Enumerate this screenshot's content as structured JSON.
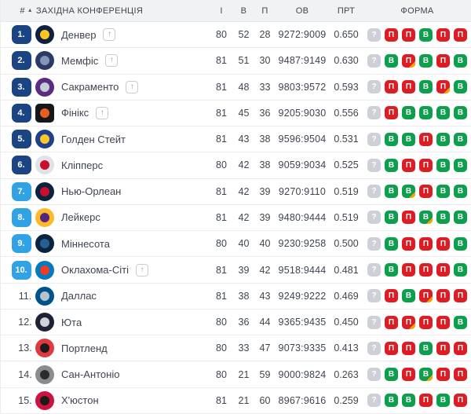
{
  "header": {
    "rank_label": "#",
    "conference_label": "ЗАХІДНА КОНФЕРЕНЦІЯ",
    "columns": [
      "І",
      "В",
      "П",
      "ОВ",
      "ПРТ",
      "ФОРМА"
    ]
  },
  "icons": {
    "sort_asc": "▲",
    "promotion_arrow": "↑"
  },
  "colors": {
    "seed_dark": "#1b4482",
    "seed_light": "#31a2e3",
    "win": "#0ca04c",
    "loss": "#de1c24",
    "unknown": "#cdd1d7",
    "overtime": "#f7a600"
  },
  "rows": [
    {
      "rank": "1.",
      "seed": "dark",
      "team": "Денвер",
      "promoted": true,
      "logo": {
        "shape": "circle",
        "outer": "#0e2240",
        "inner": "#fec524"
      },
      "games": "80",
      "wins": "52",
      "losses": "28",
      "points": "9272:9009",
      "pct": "0.650",
      "form": [
        "?",
        "П",
        "П",
        "В",
        "П",
        "П"
      ]
    },
    {
      "rank": "2.",
      "seed": "dark",
      "team": "Мемфіс",
      "promoted": true,
      "logo": {
        "shape": "circle",
        "outer": "#2b3a66",
        "inner": "#8495b5"
      },
      "games": "81",
      "wins": "51",
      "losses": "30",
      "points": "9487:9149",
      "pct": "0.630",
      "form": [
        "?",
        "В",
        "П*",
        "В",
        "П",
        "В"
      ]
    },
    {
      "rank": "3.",
      "seed": "dark",
      "team": "Сакраменто",
      "promoted": true,
      "logo": {
        "shape": "circle",
        "outer": "#5a2d81",
        "inner": "#c4ced4"
      },
      "games": "81",
      "wins": "48",
      "losses": "33",
      "points": "9803:9572",
      "pct": "0.593",
      "form": [
        "?",
        "П",
        "П",
        "В",
        "П*",
        "В"
      ]
    },
    {
      "rank": "4.",
      "seed": "dark",
      "team": "Фінікс",
      "promoted": true,
      "logo": {
        "shape": "square",
        "outer": "#17161b",
        "inner": "#e56020"
      },
      "games": "81",
      "wins": "45",
      "losses": "36",
      "points": "9205:9030",
      "pct": "0.556",
      "form": [
        "?",
        "П",
        "В",
        "В",
        "В",
        "В"
      ]
    },
    {
      "rank": "5.",
      "seed": "dark",
      "team": "Голден Стейт",
      "promoted": false,
      "logo": {
        "shape": "circle",
        "outer": "#1d428a",
        "inner": "#ffc72c"
      },
      "games": "81",
      "wins": "43",
      "losses": "38",
      "points": "9596:9504",
      "pct": "0.531",
      "form": [
        "?",
        "В",
        "В",
        "П",
        "В",
        "В"
      ]
    },
    {
      "rank": "6.",
      "seed": "dark",
      "team": "Кліпперс",
      "promoted": false,
      "logo": {
        "shape": "circle",
        "outer": "#dfe3e8",
        "inner": "#c8102e"
      },
      "games": "80",
      "wins": "42",
      "losses": "38",
      "points": "9059:9034",
      "pct": "0.525",
      "form": [
        "?",
        "В",
        "П",
        "П",
        "В",
        "В"
      ]
    },
    {
      "rank": "7.",
      "seed": "light",
      "team": "Нью-Орлеан",
      "promoted": false,
      "logo": {
        "shape": "circle",
        "outer": "#0c2340",
        "inner": "#c8102e"
      },
      "games": "81",
      "wins": "42",
      "losses": "39",
      "points": "9270:9110",
      "pct": "0.519",
      "form": [
        "?",
        "В",
        "В*",
        "П",
        "В",
        "В"
      ]
    },
    {
      "rank": "8.",
      "seed": "light",
      "team": "Лейкерс",
      "promoted": false,
      "logo": {
        "shape": "circle",
        "outer": "#fdb927",
        "inner": "#552583"
      },
      "games": "81",
      "wins": "42",
      "losses": "39",
      "points": "9480:9444",
      "pct": "0.519",
      "form": [
        "?",
        "В",
        "П",
        "В*",
        "В",
        "В"
      ]
    },
    {
      "rank": "9.",
      "seed": "light",
      "team": "Міннесота",
      "promoted": false,
      "logo": {
        "shape": "circle",
        "outer": "#0c2340",
        "inner": "#236192"
      },
      "games": "80",
      "wins": "40",
      "losses": "40",
      "points": "9230:9258",
      "pct": "0.500",
      "form": [
        "?",
        "В",
        "П",
        "П",
        "П",
        "В"
      ]
    },
    {
      "rank": "10.",
      "seed": "light",
      "team": "Оклахома-Сіті",
      "promoted": true,
      "logo": {
        "shape": "circle",
        "outer": "#007ac1",
        "inner": "#ef3b24"
      },
      "games": "81",
      "wins": "39",
      "losses": "42",
      "points": "9518:9444",
      "pct": "0.481",
      "form": [
        "?",
        "В",
        "П",
        "П",
        "П",
        "В"
      ]
    },
    {
      "rank": "11.",
      "seed": "none",
      "team": "Даллас",
      "promoted": false,
      "logo": {
        "shape": "circle",
        "outer": "#00538c",
        "inner": "#b8c4ca"
      },
      "games": "81",
      "wins": "38",
      "losses": "43",
      "points": "9249:9222",
      "pct": "0.469",
      "form": [
        "?",
        "П",
        "В",
        "П*",
        "П",
        "П"
      ]
    },
    {
      "rank": "12.",
      "seed": "none",
      "team": "Юта",
      "promoted": false,
      "logo": {
        "shape": "circle",
        "outer": "#1e2235",
        "inner": "#cfd3d9"
      },
      "games": "80",
      "wins": "36",
      "losses": "44",
      "points": "9365:9435",
      "pct": "0.450",
      "form": [
        "?",
        "П",
        "П*",
        "П",
        "П",
        "В"
      ]
    },
    {
      "rank": "13.",
      "seed": "none",
      "team": "Портленд",
      "promoted": false,
      "logo": {
        "shape": "circle",
        "outer": "#e03a3e",
        "inner": "#1b1b1b"
      },
      "games": "80",
      "wins": "33",
      "losses": "47",
      "points": "9073:9335",
      "pct": "0.413",
      "form": [
        "?",
        "П",
        "П",
        "В",
        "П",
        "П"
      ]
    },
    {
      "rank": "14.",
      "seed": "none",
      "team": "Сан-Антоніо",
      "promoted": false,
      "logo": {
        "shape": "circle",
        "outer": "#8a8d8f",
        "inner": "#2b2b2b"
      },
      "games": "80",
      "wins": "21",
      "losses": "59",
      "points": "9000:9824",
      "pct": "0.263",
      "form": [
        "?",
        "В",
        "П",
        "В*",
        "П",
        "П"
      ]
    },
    {
      "rank": "15.",
      "seed": "none",
      "team": "Х'юстон",
      "promoted": false,
      "logo": {
        "shape": "circle",
        "outer": "#ce1141",
        "inner": "#1b1b1b"
      },
      "games": "81",
      "wins": "21",
      "losses": "60",
      "points": "8967:9616",
      "pct": "0.259",
      "form": [
        "?",
        "В",
        "В",
        "П",
        "В",
        "П"
      ]
    }
  ]
}
